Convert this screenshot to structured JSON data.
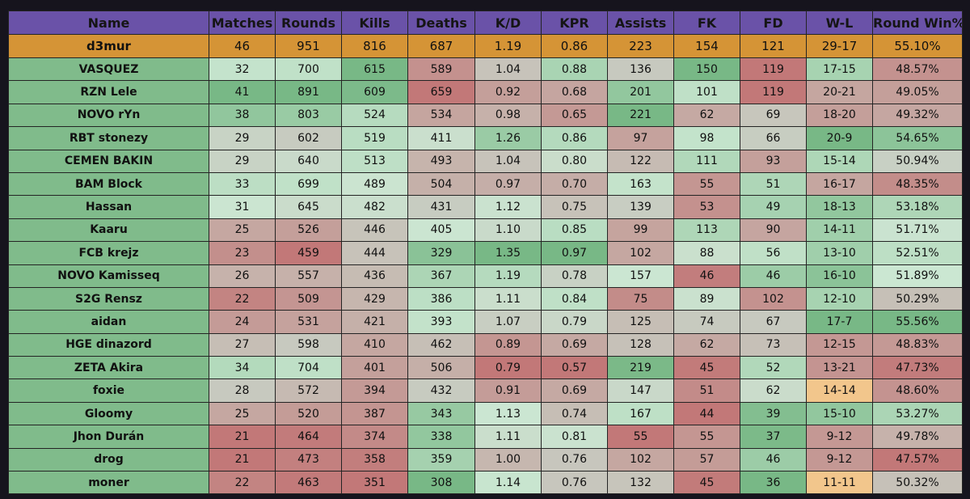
{
  "chart_data": {
    "type": "table",
    "columns": [
      "Name",
      "Matches",
      "Rounds",
      "Kills",
      "Deaths",
      "K/D",
      "KPR",
      "Assists",
      "FK",
      "FD",
      "W-L",
      "Round Win%"
    ],
    "highlight_row": [
      "d3mur",
      "46",
      "951",
      "816",
      "687",
      "1.19",
      "0.86",
      "223",
      "154",
      "121",
      "29-17",
      "55.10%"
    ],
    "rows": [
      [
        "VASQUEZ",
        "32",
        "700",
        "615",
        "589",
        "1.04",
        "0.88",
        "136",
        "150",
        "119",
        "17-15",
        "48.57%"
      ],
      [
        "RZN Lele",
        "41",
        "891",
        "609",
        "659",
        "0.92",
        "0.68",
        "201",
        "101",
        "119",
        "20-21",
        "49.05%"
      ],
      [
        "NOVO rYn",
        "38",
        "803",
        "524",
        "534",
        "0.98",
        "0.65",
        "221",
        "62",
        "69",
        "18-20",
        "49.32%"
      ],
      [
        "RBT stonezy",
        "29",
        "602",
        "519",
        "411",
        "1.26",
        "0.86",
        "97",
        "98",
        "66",
        "20-9",
        "54.65%"
      ],
      [
        "CEMEN BAKIN",
        "29",
        "640",
        "513",
        "493",
        "1.04",
        "0.80",
        "122",
        "111",
        "93",
        "15-14",
        "50.94%"
      ],
      [
        "BAM Block",
        "33",
        "699",
        "489",
        "504",
        "0.97",
        "0.70",
        "163",
        "55",
        "51",
        "16-17",
        "48.35%"
      ],
      [
        "Hassan",
        "31",
        "645",
        "482",
        "431",
        "1.12",
        "0.75",
        "139",
        "53",
        "49",
        "18-13",
        "53.18%"
      ],
      [
        "Kaaru",
        "25",
        "526",
        "446",
        "405",
        "1.10",
        "0.85",
        "99",
        "113",
        "90",
        "14-11",
        "51.71%"
      ],
      [
        "FCB krejz",
        "23",
        "459",
        "444",
        "329",
        "1.35",
        "0.97",
        "102",
        "88",
        "56",
        "13-10",
        "52.51%"
      ],
      [
        "NOVO Kamisseq",
        "26",
        "557",
        "436",
        "367",
        "1.19",
        "0.78",
        "157",
        "46",
        "46",
        "16-10",
        "51.89%"
      ],
      [
        "S2G Rensz",
        "22",
        "509",
        "429",
        "386",
        "1.11",
        "0.84",
        "75",
        "89",
        "102",
        "12-10",
        "50.29%"
      ],
      [
        "aidan",
        "24",
        "531",
        "421",
        "393",
        "1.07",
        "0.79",
        "125",
        "74",
        "67",
        "17-7",
        "55.56%"
      ],
      [
        "HGE dinazord",
        "27",
        "598",
        "410",
        "462",
        "0.89",
        "0.69",
        "128",
        "62",
        "73",
        "12-15",
        "48.83%"
      ],
      [
        "ZETA Akira",
        "34",
        "704",
        "401",
        "506",
        "0.79",
        "0.57",
        "219",
        "45",
        "52",
        "13-21",
        "47.73%"
      ],
      [
        "foxie",
        "28",
        "572",
        "394",
        "432",
        "0.91",
        "0.69",
        "147",
        "51",
        "62",
        "14-14",
        "48.60%"
      ],
      [
        "Gloomy",
        "25",
        "520",
        "387",
        "343",
        "1.13",
        "0.74",
        "167",
        "44",
        "39",
        "15-10",
        "53.27%"
      ],
      [
        "Jhon Durán",
        "21",
        "464",
        "374",
        "338",
        "1.11",
        "0.81",
        "55",
        "55",
        "37",
        "9-12",
        "49.78%"
      ],
      [
        "drog",
        "21",
        "473",
        "358",
        "359",
        "1.00",
        "0.76",
        "102",
        "57",
        "46",
        "9-12",
        "47.57%"
      ],
      [
        "moner",
        "22",
        "463",
        "351",
        "308",
        "1.14",
        "0.76",
        "132",
        "45",
        "36",
        "11-11",
        "50.32%"
      ]
    ],
    "colors": {
      "header_bg": "#6a52a8",
      "highlight_bg": "#d59436",
      "name_bg": "#80bb8b",
      "good_strong": "#78b886",
      "good_light": "#cbe7d2",
      "neutral": "#c7c9bf",
      "bad_strong": "#c27878",
      "wl_tie": "#f2c68c"
    }
  }
}
